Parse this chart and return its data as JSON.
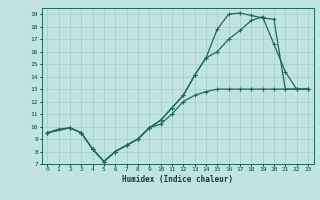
{
  "xlabel": "Humidex (Indice chaleur)",
  "bg_color": "#c0e4e4",
  "grid_color": "#a8d0d0",
  "line_color": "#1a6b5a",
  "xlim": [
    -0.5,
    23.5
  ],
  "ylim": [
    7,
    19.5
  ],
  "xticks": [
    0,
    1,
    2,
    3,
    4,
    5,
    6,
    7,
    8,
    9,
    10,
    11,
    12,
    13,
    14,
    15,
    16,
    17,
    18,
    19,
    20,
    21,
    22,
    23
  ],
  "yticks": [
    7,
    8,
    9,
    10,
    11,
    12,
    13,
    14,
    15,
    16,
    17,
    18,
    19
  ],
  "line1_x": [
    0,
    1,
    2,
    3,
    4,
    5,
    6,
    7,
    8,
    9,
    10,
    11,
    12,
    13,
    14,
    15,
    16,
    17,
    18,
    19,
    20,
    21,
    22,
    23
  ],
  "line1_y": [
    9.5,
    9.8,
    9.9,
    9.5,
    8.2,
    7.2,
    8.0,
    8.5,
    9.0,
    9.9,
    10.2,
    11.0,
    12.0,
    12.5,
    12.8,
    13.0,
    13.0,
    13.0,
    13.0,
    13.0,
    13.0,
    13.0,
    13.0,
    13.0
  ],
  "line2_x": [
    0,
    2,
    3,
    4,
    5,
    6,
    7,
    8,
    9,
    10,
    11,
    12,
    13,
    14,
    15,
    16,
    17,
    18,
    19,
    20,
    21,
    22,
    23
  ],
  "line2_y": [
    9.5,
    9.9,
    9.5,
    8.2,
    7.2,
    8.0,
    8.5,
    9.0,
    9.9,
    10.5,
    11.5,
    12.5,
    14.1,
    15.5,
    16.0,
    17.0,
    17.7,
    18.5,
    18.8,
    16.6,
    14.4,
    13.0,
    13.0
  ],
  "line3_x": [
    0,
    2,
    3,
    4,
    5,
    6,
    7,
    8,
    9,
    10,
    11,
    12,
    13,
    14,
    15,
    16,
    17,
    18,
    19,
    20,
    21,
    22,
    23
  ],
  "line3_y": [
    9.5,
    9.9,
    9.5,
    8.2,
    7.2,
    8.0,
    8.5,
    9.0,
    9.9,
    10.5,
    11.5,
    12.5,
    14.1,
    15.5,
    17.8,
    19.0,
    19.1,
    18.9,
    18.7,
    18.6,
    13.0,
    13.0,
    13.0
  ]
}
